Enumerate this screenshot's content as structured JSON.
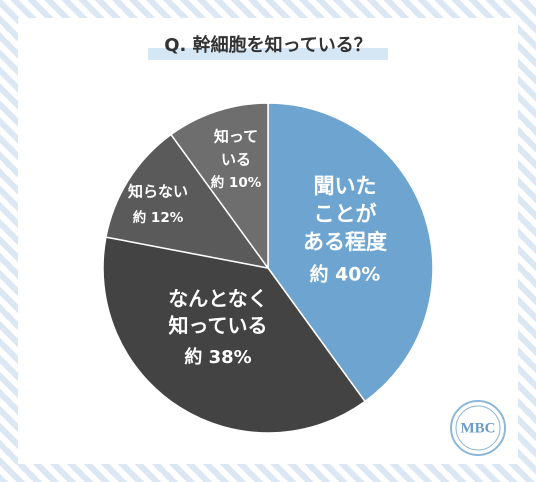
{
  "chart_data": {
    "type": "pie",
    "title": "Q. 幹細胞を知っている？",
    "categories": [
      [
        "聞いた",
        "ことが",
        "ある程度"
      ],
      [
        "なんとなく",
        "知っている"
      ],
      [
        "知らない"
      ],
      [
        "知って",
        "いる"
      ]
    ],
    "values": [
      40,
      38,
      12,
      10
    ],
    "value_labels": [
      "約 40%",
      "約 38%",
      "約 12%",
      "約 10%"
    ],
    "colors": [
      "#6ea5d0",
      "#434343",
      "#5a5a5a",
      "#6e6e6e"
    ],
    "start": "top",
    "direction": "clockwise"
  },
  "logo": "MBC"
}
